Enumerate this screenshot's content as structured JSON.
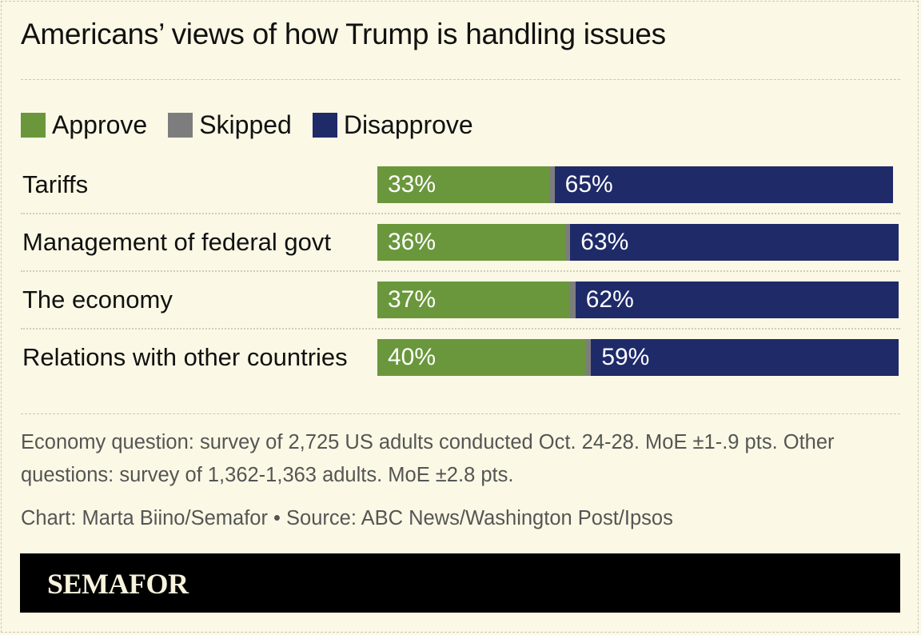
{
  "chart_data": {
    "type": "bar",
    "orientation": "horizontal",
    "stacked": true,
    "title": "Americans’ views of how Trump is handling issues",
    "categories": [
      "Tariffs",
      "Management of federal govt",
      "The economy",
      "Relations with other countries"
    ],
    "series": [
      {
        "name": "Approve",
        "color": "#6a973c",
        "values": [
          33,
          36,
          37,
          40
        ]
      },
      {
        "name": "Skipped",
        "color": "#7d7d7d",
        "values": [
          1,
          1,
          1,
          1
        ]
      },
      {
        "name": "Disapprove",
        "color": "#1f2a69",
        "values": [
          65,
          63,
          62,
          59
        ]
      }
    ],
    "data_labels": {
      "Approve": [
        "33%",
        "36%",
        "37%",
        "40%"
      ],
      "Disapprove": [
        "65%",
        "63%",
        "62%",
        "59%"
      ]
    },
    "xlim": [
      0,
      100
    ],
    "legend": "top-left",
    "grid": false
  },
  "notes": {
    "methodology": "Economy question: survey of 2,725 US adults conducted Oct. 24-28. MoE ±1-.9 pts. Other questions: survey of 1,362-1,363 adults. MoE ±2.8 pts.",
    "credit": "Chart: Marta Biino/Semafor • Source: ABC News/Washington Post/Ipsos"
  },
  "brand": {
    "logo": "SEMAFOR"
  },
  "colors": {
    "background": "#fbf9e5"
  }
}
